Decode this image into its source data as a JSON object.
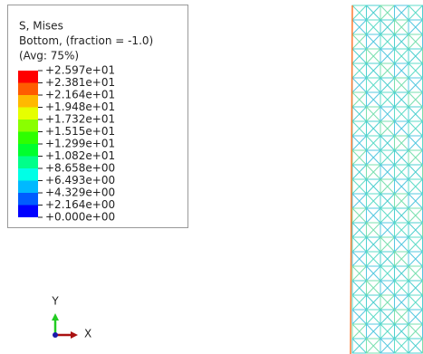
{
  "legend": {
    "title_lines": [
      "S, Mises",
      "Bottom, (fraction = -1.0)",
      "(Avg: 75%)"
    ],
    "labels": [
      "+2.597e+01",
      "+2.381e+01",
      "+2.164e+01",
      "+1.948e+01",
      "+1.732e+01",
      "+1.515e+01",
      "+1.299e+01",
      "+1.082e+01",
      "+8.658e+00",
      "+6.493e+00",
      "+4.329e+00",
      "+2.164e+00",
      "+0.000e+00"
    ],
    "colors": [
      "#ff0000",
      "#ff5c00",
      "#ffb900",
      "#e6ff00",
      "#8aff00",
      "#2eff00",
      "#00ff2e",
      "#00ff8a",
      "#00ffe6",
      "#00b9ff",
      "#005cff",
      "#0000ff"
    ]
  },
  "triad": {
    "y_label": "Y",
    "x_label": "X"
  }
}
